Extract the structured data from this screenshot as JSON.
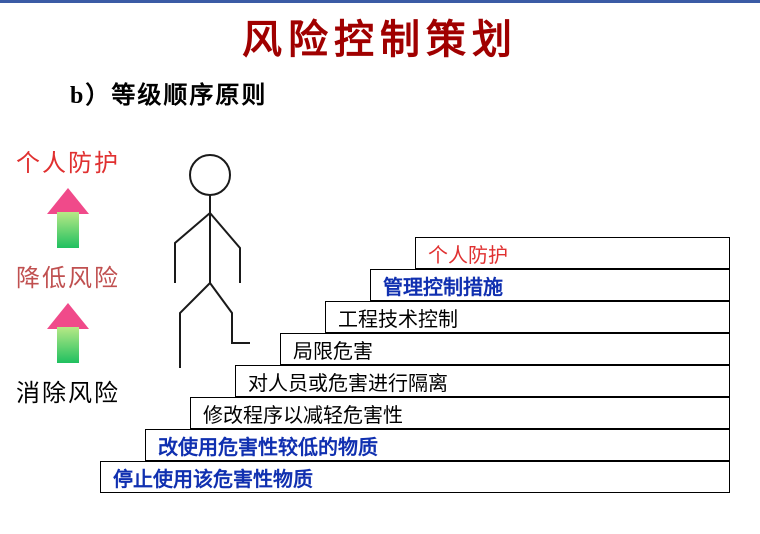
{
  "title": {
    "text": "风险控制策划",
    "color": "#a00000",
    "fontsize": 40
  },
  "subtitle": {
    "text": "b）等级顺序原则",
    "color": "#000000",
    "fontsize": 24
  },
  "left": {
    "labels": [
      {
        "text": "个人防护",
        "color": "#e03030"
      },
      {
        "text": "降低风险",
        "color": "#c05050"
      },
      {
        "text": "消除风险",
        "color": "#000000"
      }
    ],
    "arrow_head_color": "#f04a8a",
    "arrow_shaft_top": "#b8e986",
    "arrow_shaft_bottom": "#20c060"
  },
  "figure": {
    "stroke": "#1a1a1a",
    "stroke_width": 2
  },
  "stairs": {
    "step_height": 32,
    "step_indent": 45,
    "base_left": 0,
    "base_width": 630,
    "steps": [
      {
        "text": "停止使用该危害性物质",
        "color": "#1030b0",
        "bold": true
      },
      {
        "text": "改使用危害性较低的物质",
        "color": "#1030b0",
        "bold": true
      },
      {
        "text": "修改程序以减轻危害性",
        "color": "#000000",
        "bold": false
      },
      {
        "text": "对人员或危害进行隔离",
        "color": "#000000",
        "bold": false
      },
      {
        "text": "局限危害",
        "color": "#000000",
        "bold": false
      },
      {
        "text": "工程技术控制",
        "color": "#000000",
        "bold": false
      },
      {
        "text": "管理控制措施",
        "color": "#1030b0",
        "bold": true
      },
      {
        "text": "个人防护",
        "color": "#e03030",
        "bold": false
      }
    ]
  }
}
